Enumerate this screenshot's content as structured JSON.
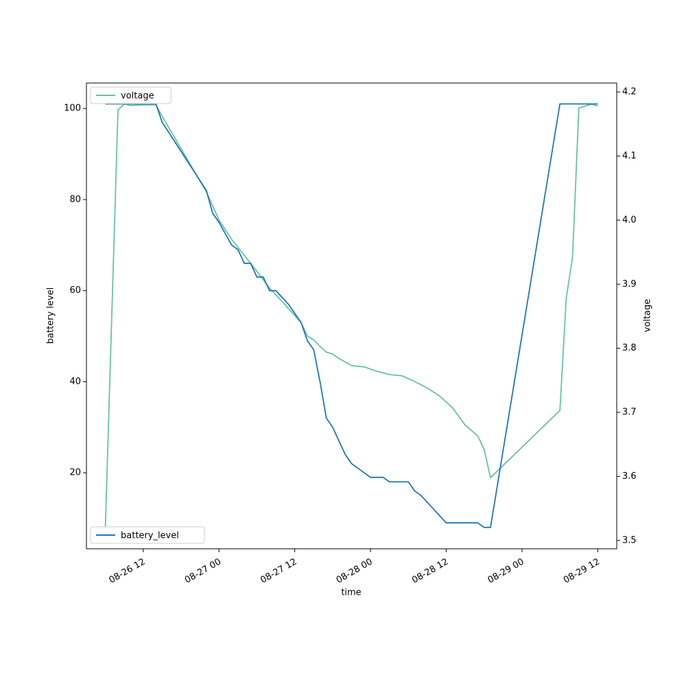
{
  "chart_data": {
    "type": "line",
    "xlabel": "time",
    "ylabel": "battery level",
    "y2label": "voltage",
    "xlim": [
      "08-26 03",
      "08-29 15"
    ],
    "xticks": [
      "08-26 12",
      "08-27 00",
      "08-27 12",
      "08-28 00",
      "08-28 12",
      "08-29 00",
      "08-29 12"
    ],
    "ylim": [
      3.3,
      105.6
    ],
    "yticks": [
      20,
      40,
      60,
      80,
      100
    ],
    "y2lim": [
      3.487,
      4.214
    ],
    "y2ticks": [
      3.5,
      3.6,
      3.7,
      3.8,
      3.9,
      {
        "value": 4,
        "label": "4.0"
      },
      4.1,
      4.2
    ],
    "series": [
      {
        "name": "voltage",
        "color": "#66c2a5",
        "axis": "y2",
        "legend": "upper left",
        "x": [
          "08-26 06",
          "08-26 08",
          "08-26 09",
          "08-26 10",
          "08-26 12",
          "08-26 14",
          "08-26 15",
          "08-26 22",
          "08-26 23",
          "08-27 00",
          "08-27 02",
          "08-27 04",
          "08-27 06",
          "08-27 08",
          "08-27 10",
          "08-27 12",
          "08-27 13",
          "08-27 14",
          "08-27 15",
          "08-27 16",
          "08-27 17",
          "08-27 18",
          "08-27 19",
          "08-27 21",
          "08-27 23",
          "08-28 01",
          "08-28 03",
          "08-28 05",
          "08-28 07",
          "08-28 09",
          "08-28 11",
          "08-28 13",
          "08-28 15",
          "08-28 17",
          "08-28 18",
          "08-28 19",
          "08-29 06",
          "08-29 07",
          "08-29 08",
          "08-29 09",
          "08-29 11",
          "08-29 12"
        ],
        "values": [
          3.52,
          4.172,
          4.181,
          4.179,
          4.18,
          4.18,
          4.162,
          4.044,
          4.022,
          4.0,
          3.97,
          3.945,
          3.92,
          3.894,
          3.873,
          3.851,
          3.84,
          3.819,
          3.813,
          3.803,
          3.794,
          3.791,
          3.784,
          3.773,
          3.771,
          3.764,
          3.759,
          3.757,
          3.748,
          3.738,
          3.725,
          3.707,
          3.68,
          3.663,
          3.642,
          3.598,
          3.703,
          3.878,
          3.942,
          4.175,
          4.181,
          4.178
        ]
      },
      {
        "name": "battery_level",
        "color": "#1f77b4",
        "axis": "y",
        "legend": "lower left",
        "x": [
          "08-26 06",
          "08-26 14",
          "08-26 15",
          "08-26 22",
          "08-26 23",
          "08-27 00",
          "08-27 02",
          "08-27 03",
          "08-27 04",
          "08-27 05",
          "08-27 06",
          "08-27 07",
          "08-27 08",
          "08-27 09",
          "08-27 11",
          "08-27 12",
          "08-27 13",
          "08-27 14",
          "08-27 15",
          "08-27 16",
          "08-27 17",
          "08-27 18",
          "08-27 19",
          "08-27 20",
          "08-27 21",
          "08-27 22",
          "08-27 23",
          "08-28 00",
          "08-28 02",
          "08-28 03",
          "08-28 05",
          "08-28 06",
          "08-28 07",
          "08-28 08",
          "08-28 12",
          "08-28 17",
          "08-28 18",
          "08-28 19",
          "08-29 06",
          "08-29 12"
        ],
        "values": [
          101,
          101,
          97,
          82,
          77,
          75,
          70,
          69,
          66,
          66,
          63,
          63,
          60,
          60,
          57,
          55,
          53,
          49,
          47,
          40,
          32,
          30,
          27,
          24,
          22,
          21,
          20,
          19,
          19,
          18,
          18,
          18,
          16,
          15,
          9,
          9,
          8,
          8,
          101,
          101
        ]
      }
    ]
  }
}
